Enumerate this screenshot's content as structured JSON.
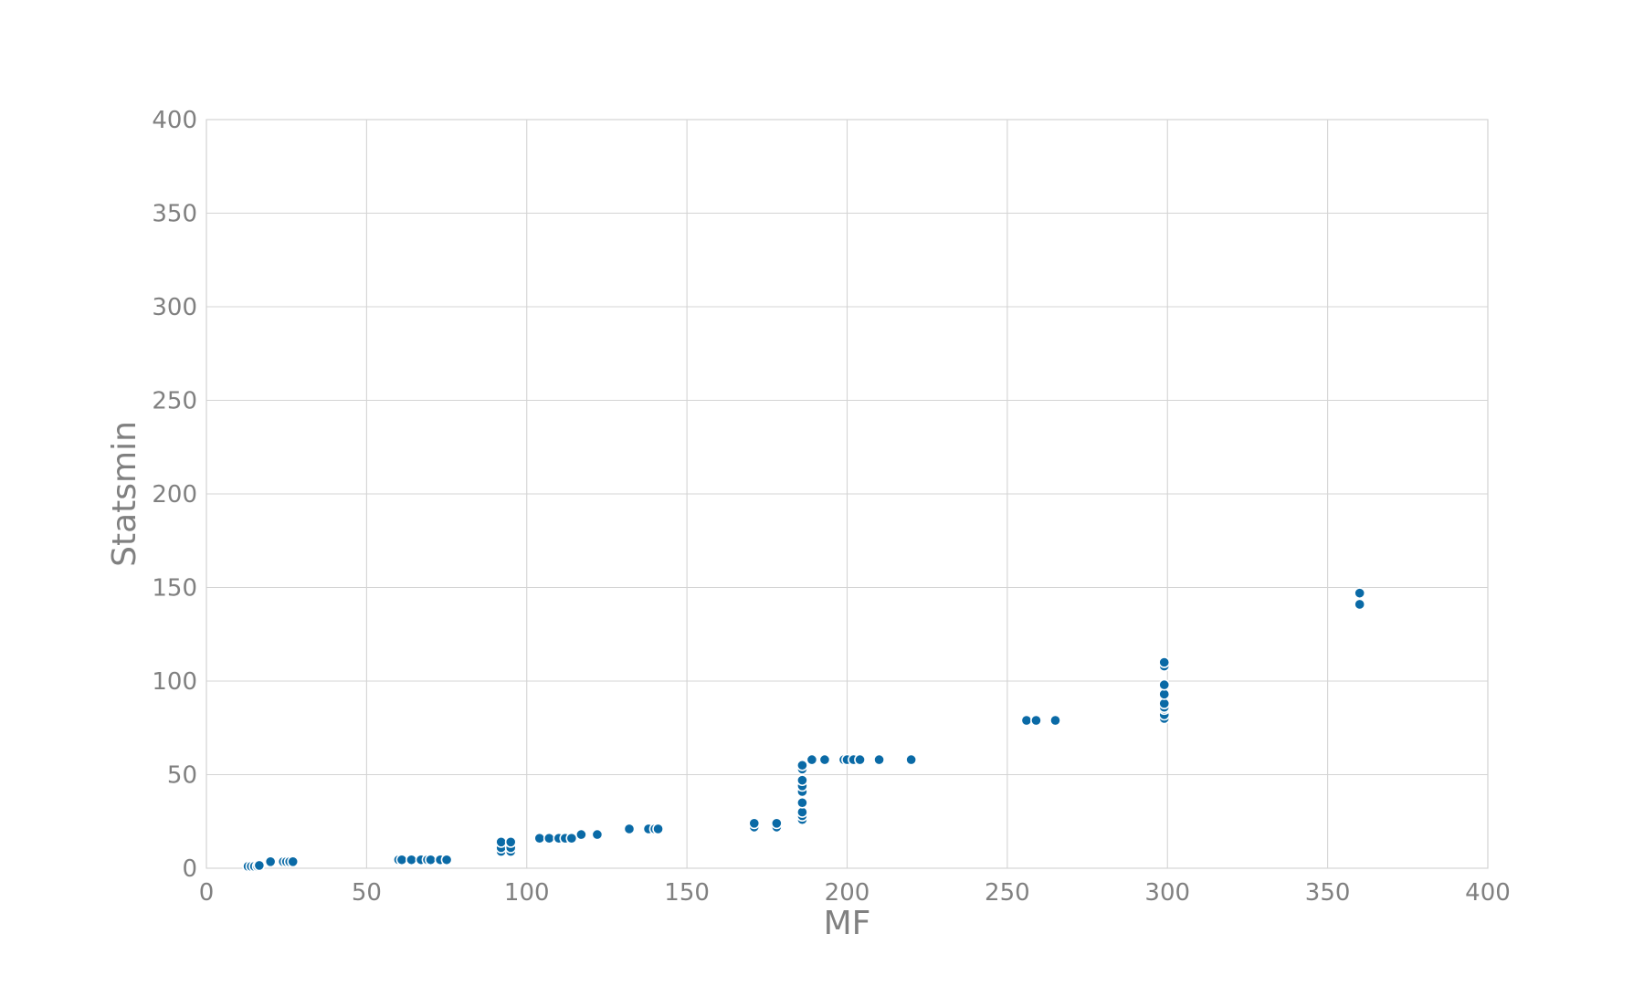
{
  "chart_data": {
    "type": "scatter",
    "title": "",
    "xlabel": "MF",
    "ylabel": "Statsmin",
    "xlim": [
      0,
      400
    ],
    "ylim": [
      0,
      400
    ],
    "xticks": [
      "0",
      "50",
      "100",
      "150",
      "200",
      "250",
      "300",
      "350",
      "400"
    ],
    "yticks": [
      "0",
      "50",
      "100",
      "150",
      "200",
      "250",
      "300",
      "350",
      "400"
    ],
    "grid": true,
    "legend": "none",
    "color": "#0a6aa6",
    "series": [
      {
        "points": [
          [
            13,
            1
          ],
          [
            14,
            1
          ],
          [
            15,
            1
          ],
          [
            16,
            1
          ],
          [
            16.5,
            1.5
          ],
          [
            20,
            3.5
          ],
          [
            24,
            3.5
          ],
          [
            25,
            3.5
          ],
          [
            26,
            3.5
          ],
          [
            27,
            3.5
          ],
          [
            60,
            4.5
          ],
          [
            61,
            4.5
          ],
          [
            64,
            4.5
          ],
          [
            67,
            4.5
          ],
          [
            69,
            4.5
          ],
          [
            70,
            4.5
          ],
          [
            73,
            4.5
          ],
          [
            75,
            4.5
          ],
          [
            92,
            9
          ],
          [
            92,
            11
          ],
          [
            92,
            14
          ],
          [
            95,
            9
          ],
          [
            95,
            11
          ],
          [
            95,
            14
          ],
          [
            104,
            16
          ],
          [
            107,
            16
          ],
          [
            110,
            16
          ],
          [
            112,
            16
          ],
          [
            114,
            16
          ],
          [
            117,
            18
          ],
          [
            122,
            18
          ],
          [
            132,
            21
          ],
          [
            138,
            21
          ],
          [
            140,
            21
          ],
          [
            141,
            21
          ],
          [
            171,
            22
          ],
          [
            171,
            24
          ],
          [
            178,
            22
          ],
          [
            178,
            24
          ],
          [
            186,
            26
          ],
          [
            186,
            28
          ],
          [
            186,
            30
          ],
          [
            186,
            35
          ],
          [
            186,
            41
          ],
          [
            186,
            44
          ],
          [
            186,
            47
          ],
          [
            186,
            53
          ],
          [
            186,
            55
          ],
          [
            189,
            58
          ],
          [
            193,
            58
          ],
          [
            199,
            58
          ],
          [
            200,
            58
          ],
          [
            202,
            58
          ],
          [
            204,
            58
          ],
          [
            210,
            58
          ],
          [
            220,
            58
          ],
          [
            256,
            79
          ],
          [
            259,
            79
          ],
          [
            265,
            79
          ],
          [
            299,
            80
          ],
          [
            299,
            82
          ],
          [
            299,
            85
          ],
          [
            299,
            86
          ],
          [
            299,
            88
          ],
          [
            299,
            93
          ],
          [
            299,
            98
          ],
          [
            299,
            108
          ],
          [
            299,
            110
          ],
          [
            360,
            141
          ],
          [
            360,
            147
          ]
        ]
      }
    ]
  }
}
